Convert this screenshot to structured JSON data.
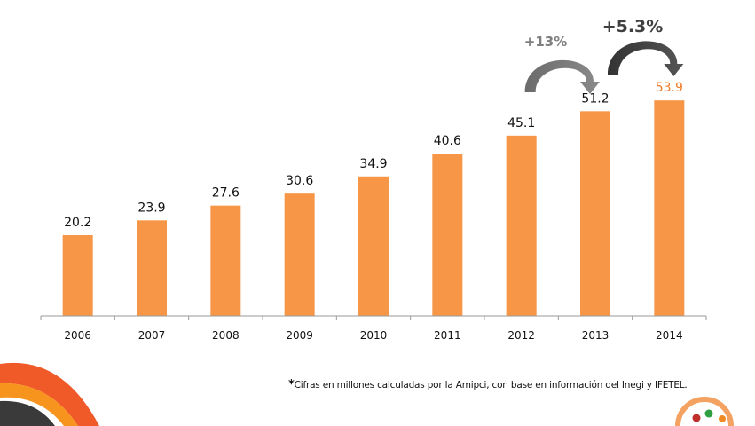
{
  "chart_data": {
    "type": "bar",
    "title": "",
    "xlabel": "",
    "ylabel": "",
    "categories": [
      "2006",
      "2007",
      "2008",
      "2009",
      "2010",
      "2011",
      "2012",
      "2013",
      "2014"
    ],
    "values": [
      20.2,
      23.9,
      27.6,
      30.6,
      34.9,
      40.6,
      45.1,
      51.2,
      53.9
    ],
    "value_labels": [
      "20.2",
      "23.9",
      "27.6",
      "30.6",
      "34.9",
      "40.6",
      "45.1",
      "51.2",
      "53.9"
    ],
    "ylim": [
      0,
      60
    ],
    "grid": false,
    "bar_color": "#F79646",
    "highlight_label_color": "#F07C28",
    "highlight_index": 8,
    "annotations": [
      {
        "text": "+13%",
        "from": "2012",
        "to": "2013",
        "color": "#7F7F7F"
      },
      {
        "text": "+5.3%",
        "from": "2013",
        "to": "2014",
        "color": "#404040"
      }
    ]
  },
  "footnote": {
    "asterisk": "*",
    "text": "Cifras en millones calculadas por la Amipci, con base en información del Inegi y IFETEL."
  }
}
